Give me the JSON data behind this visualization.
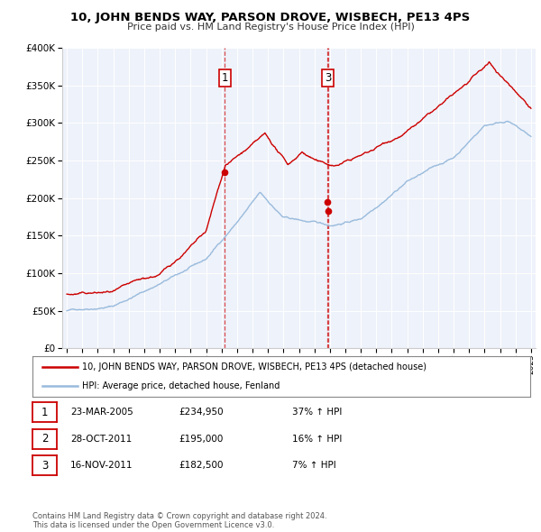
{
  "title": "10, JOHN BENDS WAY, PARSON DROVE, WISBECH, PE13 4PS",
  "subtitle": "Price paid vs. HM Land Registry's House Price Index (HPI)",
  "legend_line1": "10, JOHN BENDS WAY, PARSON DROVE, WISBECH, PE13 4PS (detached house)",
  "legend_line2": "HPI: Average price, detached house, Fenland",
  "transactions": [
    {
      "num": "1",
      "date": "23-MAR-2005",
      "price": "£234,950",
      "change": "37% ↑ HPI",
      "year": 2005.22,
      "value": 234950,
      "hpi": 171000
    },
    {
      "num": "2",
      "date": "28-OCT-2011",
      "price": "£195,000",
      "change": "16% ↑ HPI",
      "year": 2011.82,
      "value": 195000,
      "hpi": 168000
    },
    {
      "num": "3",
      "date": "16-NOV-2011",
      "price": "£182,500",
      "change": "7% ↑ HPI",
      "year": 2011.88,
      "value": 182500,
      "hpi": 170500
    }
  ],
  "show_num_labels": [
    "1",
    "3"
  ],
  "price_line_color": "#cc0000",
  "hpi_line_color": "#99bbdd",
  "vline_color": "#cc0000",
  "plot_bg_color": "#eef2fa",
  "grid_color": "#ffffff",
  "ylim": [
    0,
    400000
  ],
  "xlim_start": 1994.7,
  "xlim_end": 2025.3,
  "footer": "Contains HM Land Registry data © Crown copyright and database right 2024.\nThis data is licensed under the Open Government Licence v3.0."
}
